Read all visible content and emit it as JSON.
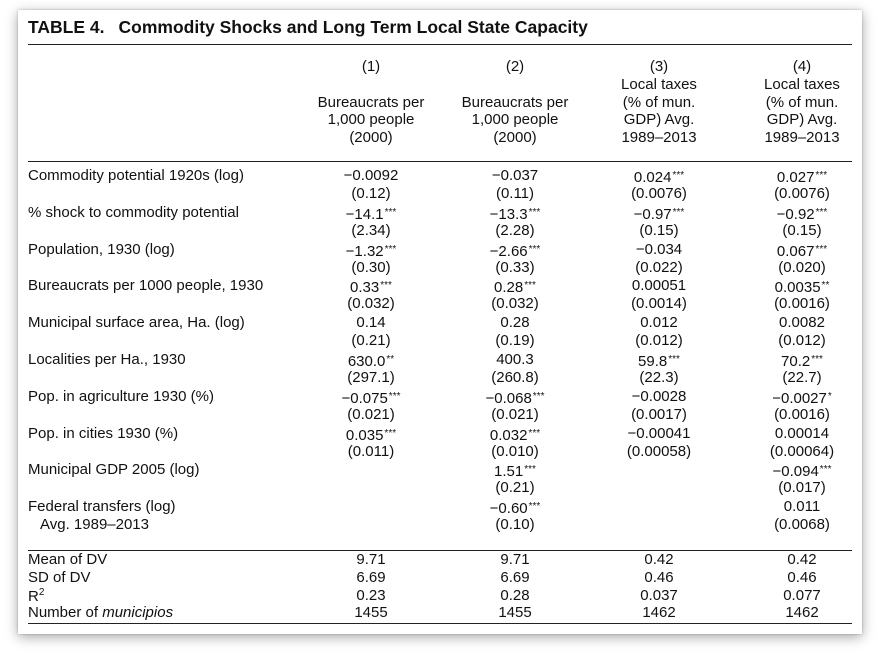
{
  "table": {
    "label": "TABLE 4.",
    "title": "Commodity Shocks and Long Term Local State Capacity",
    "columns": [
      {
        "num": "(1)",
        "head": "\nBureaucrats per\n1,000 people\n(2000)"
      },
      {
        "num": "(2)",
        "head": "\nBureaucrats per\n1,000 people\n(2000)"
      },
      {
        "num": "(3)",
        "head": "Local taxes\n(% of mun.\nGDP) Avg.\n1989–2013"
      },
      {
        "num": "(4)",
        "head": "Local taxes\n(% of mun.\nGDP) Avg.\n1989–2013"
      }
    ],
    "rows": [
      {
        "label": "Commodity potential 1920s (log)",
        "coef": [
          [
            "−0.0092",
            ""
          ],
          [
            "−0.037",
            ""
          ],
          [
            "0.024",
            "***"
          ],
          [
            "0.027",
            "***"
          ]
        ],
        "se": [
          "(0.12)",
          "(0.11)",
          "(0.0076)",
          "(0.0076)"
        ]
      },
      {
        "label": "% shock to commodity potential",
        "coef": [
          [
            "−14.1",
            "***"
          ],
          [
            "−13.3",
            "***"
          ],
          [
            "−0.97",
            "***"
          ],
          [
            "−0.92",
            "***"
          ]
        ],
        "se": [
          "(2.34)",
          "(2.28)",
          "(0.15)",
          "(0.15)"
        ]
      },
      {
        "label": "Population, 1930 (log)",
        "coef": [
          [
            "−1.32",
            "***"
          ],
          [
            "−2.66",
            "***"
          ],
          [
            "−0.034",
            ""
          ],
          [
            "0.067",
            "***"
          ]
        ],
        "se": [
          "(0.30)",
          "(0.33)",
          "(0.022)",
          "(0.020)"
        ]
      },
      {
        "label": "Bureaucrats per 1000 people, 1930",
        "coef": [
          [
            "0.33",
            "***"
          ],
          [
            "0.28",
            "***"
          ],
          [
            "0.00051",
            ""
          ],
          [
            "0.0035",
            "**"
          ]
        ],
        "se": [
          "(0.032)",
          "(0.032)",
          "(0.0014)",
          "(0.0016)"
        ]
      },
      {
        "label": "Municipal surface area, Ha. (log)",
        "coef": [
          [
            "0.14",
            ""
          ],
          [
            "0.28",
            ""
          ],
          [
            "0.012",
            ""
          ],
          [
            "0.0082",
            ""
          ]
        ],
        "se": [
          "(0.21)",
          "(0.19)",
          "(0.012)",
          "(0.012)"
        ]
      },
      {
        "label": "Localities per Ha., 1930",
        "coef": [
          [
            "630.0",
            "**"
          ],
          [
            "400.3",
            ""
          ],
          [
            "59.8",
            "***"
          ],
          [
            "70.2",
            "***"
          ]
        ],
        "se": [
          "(297.1)",
          "(260.8)",
          "(22.3)",
          "(22.7)"
        ]
      },
      {
        "label": "Pop. in agriculture 1930 (%)",
        "coef": [
          [
            "−0.075",
            "***"
          ],
          [
            "−0.068",
            "***"
          ],
          [
            "−0.0028",
            ""
          ],
          [
            "−0.0027",
            "*"
          ]
        ],
        "se": [
          "(0.021)",
          "(0.021)",
          "(0.0017)",
          "(0.0016)"
        ]
      },
      {
        "label": "Pop. in cities 1930 (%)",
        "coef": [
          [
            "0.035",
            "***"
          ],
          [
            "0.032",
            "***"
          ],
          [
            "−0.00041",
            ""
          ],
          [
            "0.00014",
            ""
          ]
        ],
        "se": [
          "(0.011)",
          "(0.010)",
          "(0.00058)",
          "(0.00064)"
        ]
      },
      {
        "label": "Municipal GDP 2005 (log)",
        "coef": [
          [
            "",
            ""
          ],
          [
            "1.51",
            "***"
          ],
          [
            "",
            ""
          ],
          [
            "−0.094",
            "***"
          ]
        ],
        "se": [
          "",
          "(0.21)",
          "",
          "(0.017)"
        ]
      },
      {
        "label": "Federal transfers (log)",
        "label2": "Avg. 1989–2013",
        "coef": [
          [
            "",
            ""
          ],
          [
            "−0.60",
            "***"
          ],
          [
            "",
            ""
          ],
          [
            "0.011",
            ""
          ]
        ],
        "se": [
          "",
          "(0.10)",
          "",
          "(0.0068)"
        ]
      }
    ],
    "stats": [
      {
        "label": "Mean of DV",
        "values": [
          "9.71",
          "9.71",
          "0.42",
          "0.42"
        ]
      },
      {
        "label": "SD of DV",
        "values": [
          "6.69",
          "6.69",
          "0.46",
          "0.46"
        ]
      },
      {
        "label": "R",
        "sup": "2",
        "values": [
          "0.23",
          "0.28",
          "0.037",
          "0.077"
        ]
      },
      {
        "label": "Number of ",
        "italic": "municipios",
        "values": [
          "1455",
          "1455",
          "1462",
          "1462"
        ]
      }
    ]
  }
}
